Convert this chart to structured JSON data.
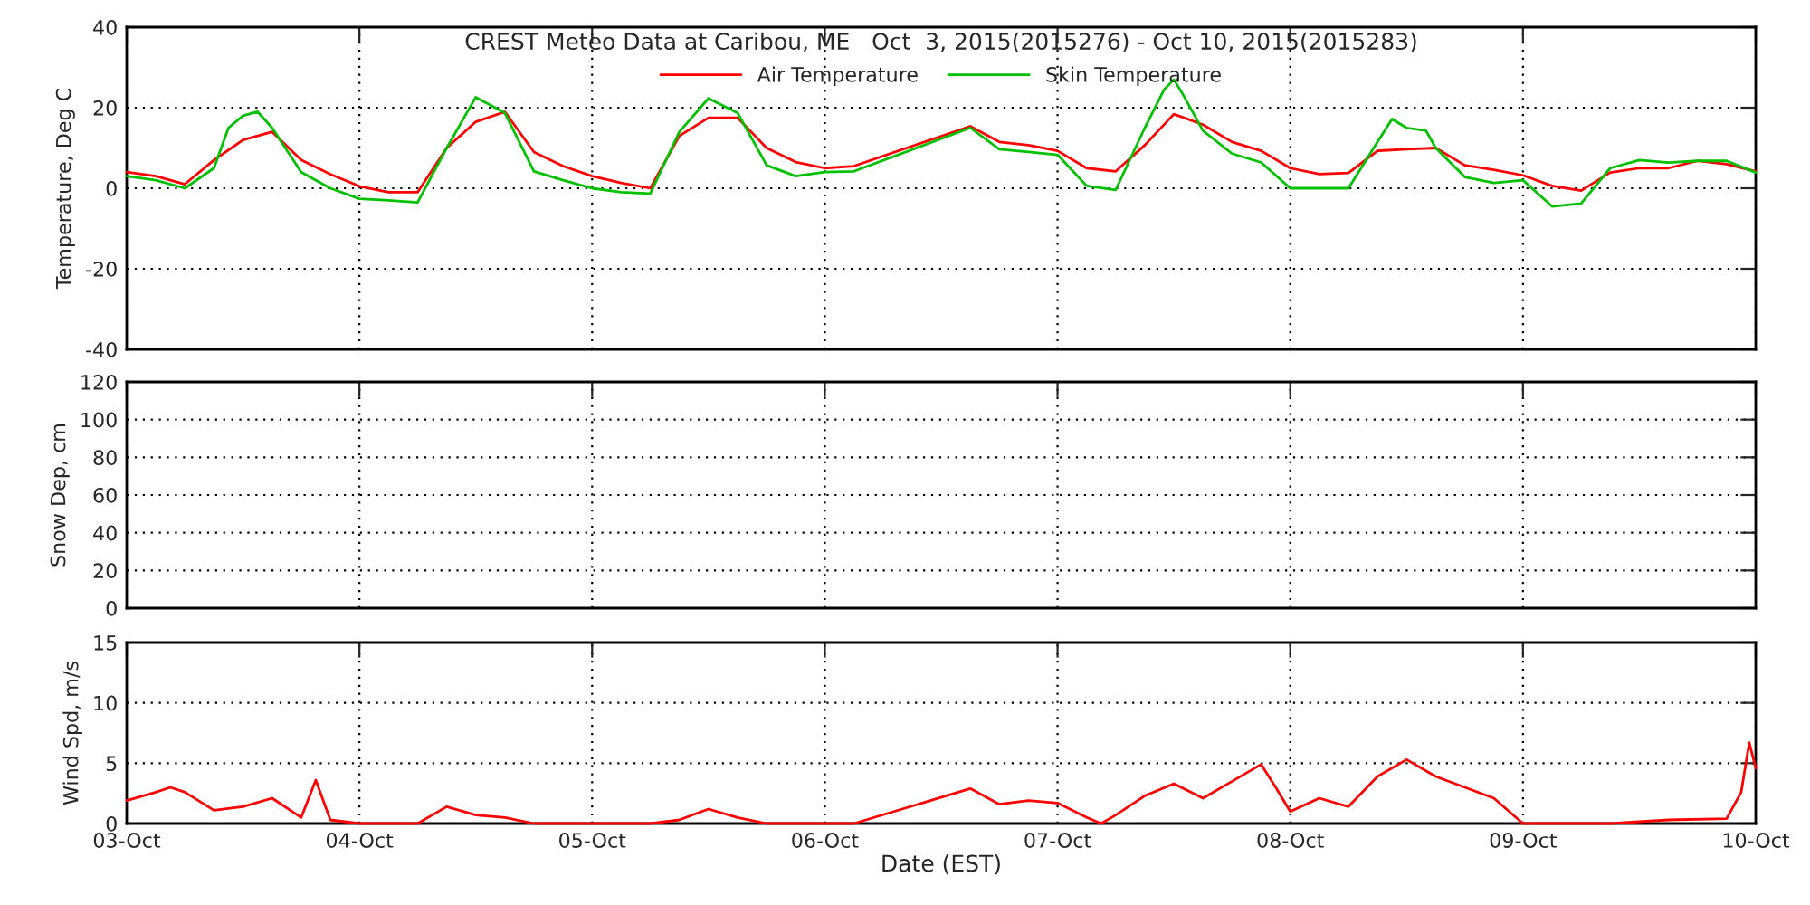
{
  "chart_data": [
    {
      "type": "line",
      "title": "CREST Meteo Data at Caribou, ME   Oct  3, 2015(2015276) - Oct 10, 2015(2015283)",
      "ylabel": "Temperature, Deg C",
      "ylim": [
        -40,
        40
      ],
      "yticks": [
        -40,
        -20,
        0,
        20,
        40
      ],
      "xlim": [
        "2015-10-03",
        "2015-10-10"
      ],
      "xticks": [
        {
          "value": "2015-10-03",
          "label": null
        },
        {
          "value": "2015-10-04",
          "label": null
        },
        {
          "value": "2015-10-05",
          "label": null
        },
        {
          "value": "2015-10-06",
          "label": null
        },
        {
          "value": "2015-10-07",
          "label": null
        },
        {
          "value": "2015-10-08",
          "label": null
        },
        {
          "value": "2015-10-09",
          "label": null
        },
        {
          "value": "2015-10-10",
          "label": null
        }
      ],
      "tick_labels": "y",
      "grid": true,
      "legend": "top",
      "series": [
        {
          "name": "Air Temperature",
          "color": "#ff0000",
          "x": [
            "2015-10-03T00:00",
            "2015-10-03T03:00",
            "2015-10-03T06:00",
            "2015-10-03T09:00",
            "2015-10-03T12:00",
            "2015-10-03T15:00",
            "2015-10-03T18:00",
            "2015-10-03T21:00",
            "2015-10-04T00:00",
            "2015-10-04T03:00",
            "2015-10-04T06:00",
            "2015-10-04T09:00",
            "2015-10-04T12:00",
            "2015-10-04T15:00",
            "2015-10-04T18:00",
            "2015-10-04T21:00",
            "2015-10-05T00:00",
            "2015-10-05T03:00",
            "2015-10-05T06:00",
            "2015-10-05T09:00",
            "2015-10-05T12:00",
            "2015-10-05T15:00",
            "2015-10-05T18:00",
            "2015-10-05T21:00",
            "2015-10-06T00:00",
            "2015-10-06T03:00",
            "2015-10-06T15:00",
            "2015-10-06T18:00",
            "2015-10-06T21:00",
            "2015-10-07T00:00",
            "2015-10-07T03:00",
            "2015-10-07T06:00",
            "2015-10-07T09:00",
            "2015-10-07T12:00",
            "2015-10-07T15:00",
            "2015-10-07T18:00",
            "2015-10-07T21:00",
            "2015-10-08T00:00",
            "2015-10-08T03:00",
            "2015-10-08T06:00",
            "2015-10-08T09:00",
            "2015-10-08T12:00",
            "2015-10-08T15:00",
            "2015-10-08T18:00",
            "2015-10-08T21:00",
            "2015-10-09T00:00",
            "2015-10-09T03:00",
            "2015-10-09T06:00",
            "2015-10-09T09:00",
            "2015-10-09T12:00",
            "2015-10-09T15:00",
            "2015-10-09T18:00",
            "2015-10-09T21:00",
            "2015-10-10T00:00"
          ],
          "values": [
            4,
            3,
            1,
            7,
            12,
            14,
            7,
            3.5,
            0.5,
            -1,
            -1,
            10,
            16.5,
            19,
            9,
            5.5,
            3,
            1.3,
            0,
            13,
            17.5,
            17.5,
            10,
            6.5,
            5,
            5.5,
            15.4,
            11.5,
            10.7,
            9.3,
            5,
            4.2,
            10.7,
            18.4,
            15.8,
            11.5,
            9.3,
            5,
            3.5,
            3.8,
            9.3,
            9.7,
            10,
            5.7,
            4.6,
            3.2,
            0.6,
            -0.6,
            3.9,
            5,
            5,
            6.8,
            6,
            4.2
          ]
        },
        {
          "name": "Skin Temperature",
          "color": "#00c000",
          "x": [
            "2015-10-03T00:00",
            "2015-10-03T03:00",
            "2015-10-03T06:00",
            "2015-10-03T09:00",
            "2015-10-03T10:30",
            "2015-10-03T12:00",
            "2015-10-03T13:30",
            "2015-10-03T15:00",
            "2015-10-03T18:00",
            "2015-10-03T21:00",
            "2015-10-04T00:00",
            "2015-10-04T03:00",
            "2015-10-04T06:00",
            "2015-10-04T09:00",
            "2015-10-04T12:00",
            "2015-10-04T15:00",
            "2015-10-04T18:00",
            "2015-10-04T21:00",
            "2015-10-05T00:00",
            "2015-10-05T03:00",
            "2015-10-05T06:00",
            "2015-10-05T09:00",
            "2015-10-05T12:00",
            "2015-10-05T15:00",
            "2015-10-05T18:00",
            "2015-10-05T21:00",
            "2015-10-06T00:00",
            "2015-10-06T03:00",
            "2015-10-06T15:00",
            "2015-10-06T18:00",
            "2015-10-06T21:00",
            "2015-10-07T00:00",
            "2015-10-07T03:00",
            "2015-10-07T06:00",
            "2015-10-07T09:00",
            "2015-10-07T11:00",
            "2015-10-07T12:00",
            "2015-10-07T13:00",
            "2015-10-07T15:00",
            "2015-10-07T18:00",
            "2015-10-07T21:00",
            "2015-10-08T00:00",
            "2015-10-08T03:00",
            "2015-10-08T06:00",
            "2015-10-08T09:00",
            "2015-10-08T10:30",
            "2015-10-08T12:00",
            "2015-10-08T14:00",
            "2015-10-08T15:00",
            "2015-10-08T18:00",
            "2015-10-08T21:00",
            "2015-10-09T00:00",
            "2015-10-09T03:00",
            "2015-10-09T06:00",
            "2015-10-09T09:00",
            "2015-10-09T12:00",
            "2015-10-09T15:00",
            "2015-10-09T18:00",
            "2015-10-09T21:00",
            "2015-10-10T00:00"
          ],
          "values": [
            3,
            2,
            0,
            5,
            15,
            18,
            19,
            15,
            4,
            0,
            -2.6,
            -3,
            -3.5,
            10,
            22.6,
            18.7,
            4.2,
            2,
            0,
            -1,
            -1.3,
            14,
            22.3,
            18.7,
            5.7,
            3,
            4,
            4.2,
            15,
            9.7,
            9,
            8.3,
            0.6,
            -0.4,
            15,
            24.5,
            27,
            23,
            14.3,
            8.6,
            6.4,
            0,
            0,
            0,
            11.5,
            17.2,
            15,
            14.3,
            10,
            2.8,
            1.3,
            2,
            -4.5,
            -3.8,
            5,
            7,
            6.4,
            6.8,
            6.8,
            3.9
          ]
        }
      ]
    },
    {
      "type": "line",
      "ylabel": "Snow Dep, cm",
      "ylim": [
        0,
        120
      ],
      "yticks": [
        0,
        20,
        40,
        60,
        80,
        100,
        120
      ],
      "xlim": [
        "2015-10-03",
        "2015-10-10"
      ],
      "xticks": [
        {
          "value": "2015-10-03",
          "label": null
        },
        {
          "value": "2015-10-04",
          "label": null
        },
        {
          "value": "2015-10-05",
          "label": null
        },
        {
          "value": "2015-10-06",
          "label": null
        },
        {
          "value": "2015-10-07",
          "label": null
        },
        {
          "value": "2015-10-08",
          "label": null
        },
        {
          "value": "2015-10-09",
          "label": null
        },
        {
          "value": "2015-10-10",
          "label": null
        }
      ],
      "tick_labels": "y",
      "grid": true
    },
    {
      "type": "line",
      "ylabel": "Wind Spd, m/s",
      "xlabel": "Date (EST)",
      "ylim": [
        0,
        15
      ],
      "yticks": [
        0,
        5,
        10,
        15
      ],
      "xlim": [
        "2015-10-03",
        "2015-10-10"
      ],
      "xticks": [
        {
          "value": "2015-10-03",
          "label": "03-Oct"
        },
        {
          "value": "2015-10-04",
          "label": "04-Oct"
        },
        {
          "value": "2015-10-05",
          "label": "05-Oct"
        },
        {
          "value": "2015-10-06",
          "label": "06-Oct"
        },
        {
          "value": "2015-10-07",
          "label": "07-Oct"
        },
        {
          "value": "2015-10-08",
          "label": "08-Oct"
        },
        {
          "value": "2015-10-09",
          "label": "09-Oct"
        },
        {
          "value": "2015-10-10",
          "label": "10-Oct"
        }
      ],
      "grid": true,
      "series": [
        {
          "color": "#ff0000",
          "x": [
            "2015-10-03T00:00",
            "2015-10-03T03:00",
            "2015-10-03T04:30",
            "2015-10-03T06:00",
            "2015-10-03T09:00",
            "2015-10-03T12:00",
            "2015-10-03T15:00",
            "2015-10-03T18:00",
            "2015-10-03T19:30",
            "2015-10-03T21:00",
            "2015-10-04T00:00",
            "2015-10-04T03:00",
            "2015-10-04T06:00",
            "2015-10-04T09:00",
            "2015-10-04T12:00",
            "2015-10-04T15:00",
            "2015-10-04T18:00",
            "2015-10-05T00:00",
            "2015-10-05T06:00",
            "2015-10-05T09:00",
            "2015-10-05T12:00",
            "2015-10-05T15:00",
            "2015-10-05T18:00",
            "2015-10-06T00:00",
            "2015-10-06T03:00",
            "2015-10-06T15:00",
            "2015-10-06T18:00",
            "2015-10-06T21:00",
            "2015-10-07T00:00",
            "2015-10-07T03:00",
            "2015-10-07T04:30",
            "2015-10-07T06:00",
            "2015-10-07T09:00",
            "2015-10-07T12:00",
            "2015-10-07T15:00",
            "2015-10-07T18:00",
            "2015-10-07T21:00",
            "2015-10-07T22:30",
            "2015-10-08T00:00",
            "2015-10-08T03:00",
            "2015-10-08T06:00",
            "2015-10-08T09:00",
            "2015-10-08T12:00",
            "2015-10-08T15:00",
            "2015-10-08T18:00",
            "2015-10-08T21:00",
            "2015-10-09T00:00",
            "2015-10-09T03:00",
            "2015-10-09T09:00",
            "2015-10-09T15:00",
            "2015-10-09T21:00",
            "2015-10-09T22:30",
            "2015-10-09T23:20",
            "2015-10-10T00:00"
          ],
          "values": [
            1.9,
            2.6,
            3,
            2.6,
            1.1,
            1.4,
            2.1,
            0.5,
            3.6,
            0.3,
            0,
            0,
            0,
            1.4,
            0.7,
            0.5,
            0,
            0,
            0,
            0.3,
            1.2,
            0.5,
            0,
            0,
            0,
            2.9,
            1.6,
            1.9,
            1.7,
            0.5,
            0,
            0.7,
            2.3,
            3.3,
            2.1,
            3.5,
            4.9,
            3,
            1,
            2.1,
            1.4,
            3.9,
            5.3,
            3.9,
            3,
            2.1,
            0,
            0,
            0,
            0.3,
            0.4,
            2.6,
            6.7,
            4.6
          ]
        }
      ]
    }
  ]
}
